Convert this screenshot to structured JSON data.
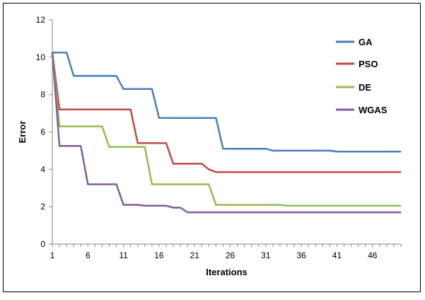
{
  "chart_data": {
    "type": "line",
    "title": "",
    "xlabel": "Iterations",
    "ylabel": "Error",
    "xlim": [
      1,
      50
    ],
    "ylim": [
      0,
      12
    ],
    "x_ticks": [
      1,
      6,
      11,
      16,
      21,
      26,
      31,
      36,
      41,
      46
    ],
    "y_ticks": [
      0,
      2,
      4,
      6,
      8,
      10,
      12
    ],
    "grid": false,
    "legend_position": "top-right",
    "series": [
      {
        "name": "GA",
        "color": "#4A7EBB",
        "points": [
          [
            1,
            10.25
          ],
          [
            3,
            10.25
          ],
          [
            4,
            9.0
          ],
          [
            10,
            9.0
          ],
          [
            11,
            8.3
          ],
          [
            15,
            8.3
          ],
          [
            16,
            6.75
          ],
          [
            24,
            6.75
          ],
          [
            25,
            5.1
          ],
          [
            31,
            5.1
          ],
          [
            32,
            5.0
          ],
          [
            40,
            5.0
          ],
          [
            41,
            4.95
          ],
          [
            50,
            4.95
          ]
        ]
      },
      {
        "name": "PSO",
        "color": "#BE4B48",
        "points": [
          [
            1,
            10.25
          ],
          [
            2,
            7.2
          ],
          [
            12,
            7.2
          ],
          [
            13,
            5.4
          ],
          [
            17,
            5.4
          ],
          [
            18,
            4.3
          ],
          [
            22,
            4.3
          ],
          [
            23,
            4.0
          ],
          [
            24,
            3.85
          ],
          [
            50,
            3.85
          ]
        ]
      },
      {
        "name": "DE",
        "color": "#98B954",
        "points": [
          [
            1,
            10.25
          ],
          [
            2,
            6.3
          ],
          [
            8,
            6.3
          ],
          [
            9,
            5.2
          ],
          [
            14,
            5.2
          ],
          [
            15,
            3.2
          ],
          [
            23,
            3.2
          ],
          [
            24,
            2.1
          ],
          [
            33,
            2.1
          ],
          [
            34,
            2.05
          ],
          [
            50,
            2.05
          ]
        ]
      },
      {
        "name": "WGAS",
        "color": "#7D5FA0",
        "points": [
          [
            1,
            10.25
          ],
          [
            2,
            5.25
          ],
          [
            5,
            5.25
          ],
          [
            6,
            3.2
          ],
          [
            10,
            3.2
          ],
          [
            11,
            2.1
          ],
          [
            13,
            2.1
          ],
          [
            14,
            2.05
          ],
          [
            17,
            2.05
          ],
          [
            18,
            1.95
          ],
          [
            19,
            1.95
          ],
          [
            20,
            1.7
          ],
          [
            50,
            1.7
          ]
        ]
      }
    ]
  }
}
